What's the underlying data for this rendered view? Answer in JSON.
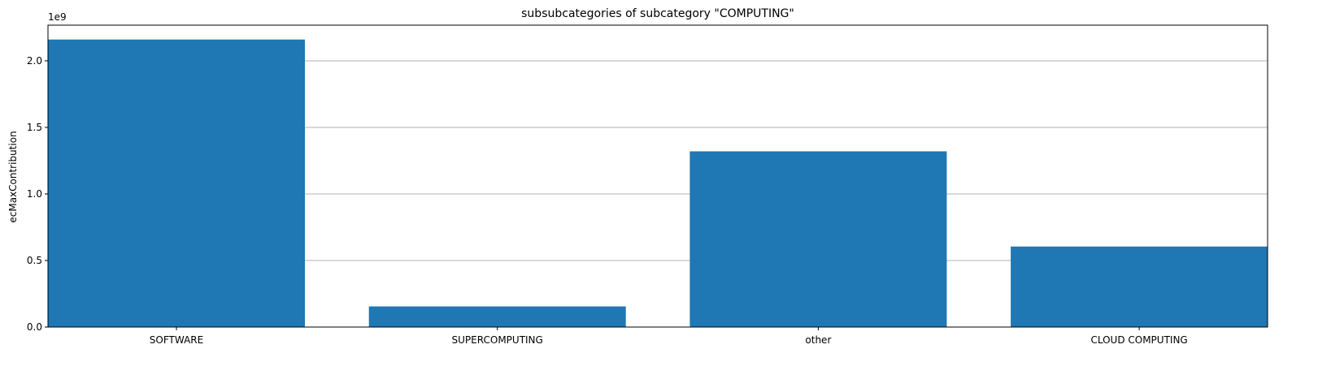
{
  "chart_data": {
    "type": "bar",
    "title": "subsubcategories of subcategory \"COMPUTING\"",
    "xlabel": "",
    "ylabel": "ecMaxContribution",
    "y_offset_label": "1e9",
    "categories": [
      "SOFTWARE",
      "SUPERCOMPUTING",
      "other",
      "CLOUD COMPUTING"
    ],
    "values": [
      2160000000,
      155000000,
      1320000000,
      605000000
    ],
    "ylim": [
      0,
      2268000000
    ],
    "y_ticks": [
      0,
      500000000,
      1000000000,
      1500000000,
      2000000000
    ],
    "y_tick_labels": [
      "0.0",
      "0.5",
      "1.0",
      "1.5",
      "2.0"
    ],
    "grid": "y",
    "bar_color": "#1f77b4"
  }
}
